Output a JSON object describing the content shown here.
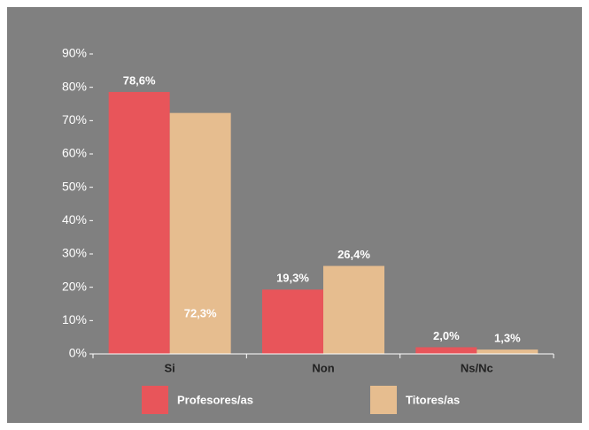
{
  "chart_data": {
    "type": "bar",
    "categories": [
      "Si",
      "Non",
      "Ns/Nc"
    ],
    "series": [
      {
        "name": "Profesores/as",
        "color": "#e8555a",
        "values": [
          78.6,
          19.3,
          2.0
        ],
        "value_labels": [
          "78,6%",
          "19,3%",
          "2,0%"
        ]
      },
      {
        "name": "Titores/as",
        "color": "#e6bd8f",
        "values": [
          72.3,
          26.4,
          1.3
        ],
        "value_labels": [
          "72,3%",
          "26,4%",
          "1,3%"
        ]
      }
    ],
    "ylim": [
      0,
      90
    ],
    "yticks": [
      {
        "value": 0,
        "label": "0%"
      },
      {
        "value": 10,
        "label": "10%"
      },
      {
        "value": 20,
        "label": "20%"
      },
      {
        "value": 30,
        "label": "30%"
      },
      {
        "value": 40,
        "label": "40%"
      },
      {
        "value": 50,
        "label": "50%"
      },
      {
        "value": 60,
        "label": "60%"
      },
      {
        "value": 70,
        "label": "70%"
      },
      {
        "value": 80,
        "label": "80%"
      },
      {
        "value": 90,
        "label": "90%"
      }
    ],
    "grid": false,
    "legend": "bottom"
  }
}
